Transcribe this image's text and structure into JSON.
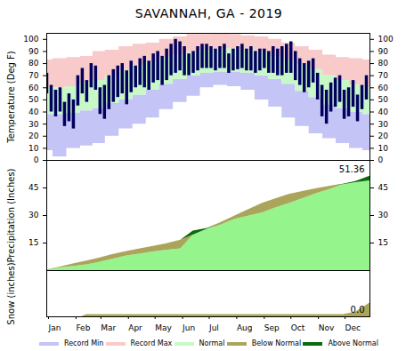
{
  "chart_data": [
    {
      "type": "range",
      "title": "SAVANNAH, GA - 2019",
      "ylabel": "Temperature (Deg F)",
      "xlim": [
        1,
        365
      ],
      "ylim": [
        0,
        105
      ],
      "yticks": [
        0,
        10,
        20,
        30,
        40,
        50,
        60,
        70,
        80,
        90,
        100
      ],
      "grid": false,
      "tick_labels": "y",
      "x": [
        1,
        15,
        32,
        46,
        60,
        74,
        91,
        105,
        121,
        135,
        152,
        166,
        182,
        196,
        213,
        227,
        244,
        258,
        274,
        288,
        305,
        319,
        335,
        349,
        365
      ],
      "series": [
        {
          "name": "Record Min",
          "color": "#c4c4f6",
          "values": [
            8,
            3,
            10,
            12,
            14,
            20,
            26,
            30,
            35,
            42,
            48,
            53,
            60,
            62,
            61,
            58,
            50,
            44,
            35,
            28,
            22,
            18,
            14,
            10,
            8
          ]
        },
        {
          "name": "Record Max",
          "color": "#f8caca",
          "values": [
            83,
            84,
            85,
            86,
            90,
            91,
            94,
            96,
            97,
            100,
            102,
            104,
            104,
            105,
            104,
            103,
            102,
            100,
            97,
            94,
            91,
            87,
            85,
            84,
            83
          ]
        },
        {
          "name": "Normal",
          "color": "#c8f8c8",
          "low": [
            38,
            38,
            39,
            41,
            43,
            47,
            50,
            54,
            58,
            63,
            67,
            70,
            72,
            73,
            73,
            72,
            70,
            67,
            63,
            57,
            52,
            46,
            43,
            40,
            38
          ],
          "high": [
            60,
            60,
            61,
            64,
            66,
            70,
            74,
            78,
            81,
            85,
            87,
            89,
            91,
            92,
            92,
            91,
            89,
            86,
            83,
            79,
            75,
            70,
            66,
            62,
            60
          ]
        },
        {
          "type": "bar",
          "color": "#00005e",
          "x": [
            1,
            6,
            11,
            16,
            21,
            26,
            31,
            36,
            41,
            46,
            51,
            56,
            61,
            66,
            71,
            76,
            81,
            86,
            91,
            96,
            101,
            106,
            111,
            116,
            121,
            126,
            131,
            136,
            141,
            146,
            151,
            156,
            161,
            166,
            171,
            176,
            181,
            186,
            191,
            196,
            201,
            206,
            211,
            216,
            221,
            226,
            231,
            236,
            241,
            246,
            251,
            256,
            261,
            266,
            271,
            276,
            281,
            286,
            291,
            296,
            301,
            306,
            311,
            316,
            321,
            326,
            331,
            336,
            341,
            346,
            351,
            356,
            361
          ],
          "low": [
            55,
            40,
            36,
            40,
            28,
            32,
            26,
            45,
            55,
            48,
            60,
            58,
            38,
            34,
            42,
            48,
            52,
            55,
            46,
            56,
            60,
            62,
            60,
            58,
            64,
            66,
            62,
            66,
            70,
            72,
            74,
            70,
            70,
            72,
            74,
            76,
            76,
            76,
            74,
            76,
            76,
            72,
            74,
            75,
            76,
            74,
            74,
            72,
            74,
            76,
            72,
            72,
            70,
            70,
            72,
            72,
            66,
            62,
            56,
            60,
            64,
            50,
            36,
            30,
            40,
            44,
            48,
            34,
            36,
            44,
            32,
            42,
            50
          ],
          "high": [
            72,
            62,
            58,
            60,
            48,
            55,
            50,
            70,
            76,
            66,
            80,
            78,
            60,
            62,
            70,
            75,
            78,
            80,
            74,
            82,
            78,
            84,
            86,
            82,
            88,
            90,
            86,
            92,
            96,
            100,
            98,
            94,
            88,
            90,
            94,
            96,
            96,
            94,
            92,
            94,
            96,
            88,
            92,
            94,
            96,
            92,
            94,
            90,
            92,
            92,
            90,
            94,
            92,
            94,
            96,
            98,
            90,
            84,
            80,
            82,
            84,
            72,
            62,
            58,
            64,
            68,
            70,
            58,
            60,
            66,
            54,
            62,
            70
          ]
        }
      ]
    },
    {
      "type": "area",
      "ylabel": "Precipitation (Inches)",
      "xlim": [
        1,
        365
      ],
      "ylim": [
        0,
        60
      ],
      "yticks": [
        15,
        30,
        45
      ],
      "grid": false,
      "tick_labels": "y",
      "x": [
        1,
        15,
        32,
        46,
        60,
        74,
        91,
        105,
        121,
        135,
        152,
        166,
        182,
        196,
        213,
        227,
        244,
        258,
        274,
        288,
        305,
        319,
        335,
        349,
        365
      ],
      "series": [
        {
          "name": "Normal",
          "color": "#96f48c",
          "values": [
            0.1,
            1.8,
            3.8,
            5.2,
            6.8,
            8.6,
            10.4,
            11.7,
            13.2,
            14.5,
            16.6,
            19.3,
            22.6,
            25.9,
            29.8,
            32.9,
            36.6,
            38.9,
            41.5,
            43.0,
            44.6,
            45.8,
            46.8,
            47.9,
            48.9
          ]
        },
        {
          "name": "Below Normal",
          "color": "#aaa55a"
        },
        {
          "name": "Above Normal",
          "color": "#0a6a0a"
        },
        {
          "values": [
            0.2,
            1.5,
            2.3,
            3.2,
            4.5,
            6.0,
            8.0,
            9.0,
            10.2,
            11.0,
            11.8,
            21.5,
            23.0,
            24.5,
            28.0,
            29.5,
            31.5,
            34.0,
            36.5,
            39.0,
            42.0,
            44.0,
            47.0,
            48.5,
            51.36
          ]
        }
      ],
      "annotations": [
        {
          "x": 365,
          "y": 51.36,
          "text": "51.36"
        }
      ]
    },
    {
      "type": "area",
      "ylabel": "Snow (inches)",
      "xlim": [
        1,
        365
      ],
      "ylim": [
        0,
        2
      ],
      "grid": false,
      "tick_labels": "x",
      "legend": "bottom",
      "xticks": [
        {
          "value": 1,
          "label": "Jan"
        },
        {
          "value": 32,
          "label": "Feb"
        },
        {
          "value": 60,
          "label": "Mar"
        },
        {
          "value": 91,
          "label": "Apr"
        },
        {
          "value": 121,
          "label": "May"
        },
        {
          "value": 152,
          "label": "Jun"
        },
        {
          "value": 182,
          "label": "Jul"
        },
        {
          "value": 213,
          "label": "Aug"
        },
        {
          "value": 244,
          "label": "Sep"
        },
        {
          "value": 274,
          "label": "Oct"
        },
        {
          "value": 305,
          "label": "Nov"
        },
        {
          "value": 335,
          "label": "Dec"
        }
      ],
      "x": [
        1,
        40,
        46,
        335,
        349,
        365
      ],
      "series": [
        {
          "name": "Normal",
          "color": "#96f48c",
          "values": [
            0,
            0,
            0.1,
            0.1,
            0.2,
            0.6
          ]
        },
        {
          "name": "Below Normal",
          "color": "#aaa55a"
        },
        {
          "name": "Above Normal",
          "color": "#0a6a0a"
        },
        {
          "values": [
            0,
            0,
            0,
            0,
            0,
            0
          ]
        }
      ],
      "annotations": [
        {
          "x": 365,
          "y": 0,
          "text": "0.0"
        }
      ]
    }
  ]
}
